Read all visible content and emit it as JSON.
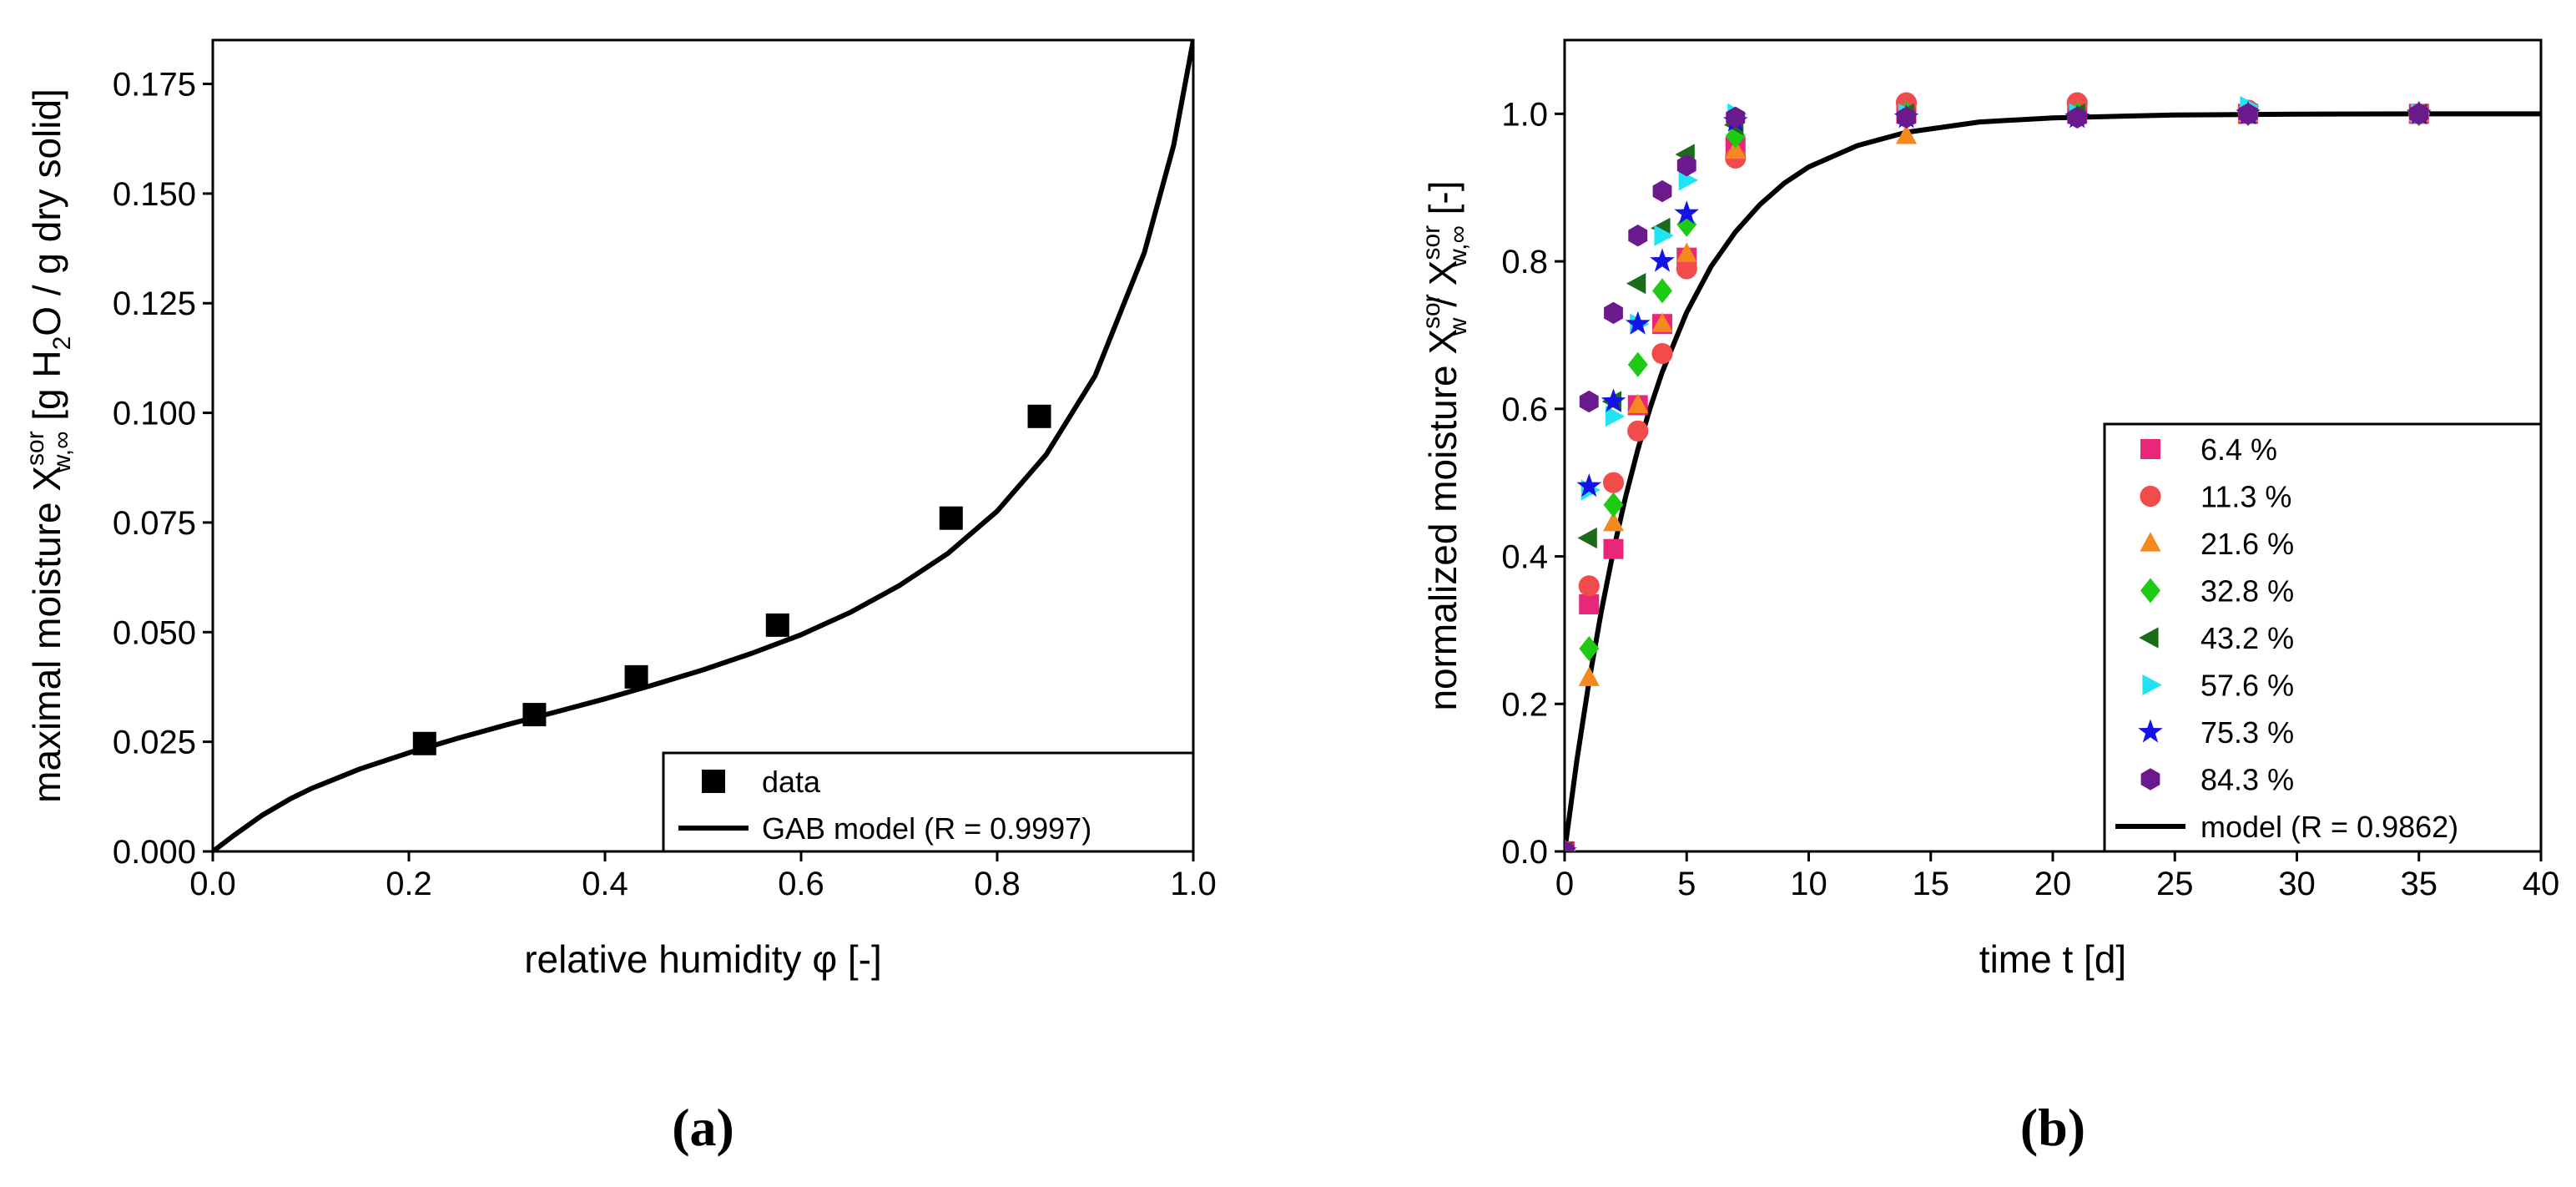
{
  "chart_data": [
    {
      "type": "scatter",
      "panel_label": "(a)",
      "xlabel": "relative humidity φ [-]",
      "ylabel": {
        "pre": "maximal moisture X",
        "sup": "sor",
        "sub": "w,∞",
        "mid": " [g H",
        "sub2": "2",
        "post": "O / g dry solid]"
      },
      "xlim": [
        0.0,
        1.0
      ],
      "ylim": [
        0.0,
        0.185
      ],
      "xticks": [
        "0.0",
        "0.2",
        "0.4",
        "0.6",
        "0.8",
        "1.0"
      ],
      "yticks": [
        "0.000",
        "0.025",
        "0.050",
        "0.075",
        "0.100",
        "0.125",
        "0.150",
        "0.175"
      ],
      "series": [
        {
          "name": "data",
          "kind": "scatter",
          "marker": "square",
          "color": "#000000",
          "x": [
            0.216,
            0.328,
            0.432,
            0.576,
            0.753,
            0.843
          ],
          "y": [
            0.0246,
            0.0312,
            0.0398,
            0.0516,
            0.076,
            0.0992
          ]
        },
        {
          "name": "GAB model (R = 0.9997)",
          "kind": "line",
          "color": "#000000",
          "x": [
            0.0,
            0.02,
            0.05,
            0.08,
            0.1,
            0.15,
            0.2,
            0.25,
            0.3,
            0.35,
            0.4,
            0.45,
            0.5,
            0.55,
            0.6,
            0.65,
            0.7,
            0.75,
            0.8,
            0.85,
            0.9,
            0.95,
            0.98,
            1.0
          ],
          "y": [
            0.0,
            0.0034,
            0.0082,
            0.0121,
            0.0143,
            0.0188,
            0.0225,
            0.0258,
            0.0289,
            0.0318,
            0.0348,
            0.038,
            0.0414,
            0.0452,
            0.0494,
            0.0545,
            0.0606,
            0.068,
            0.0776,
            0.0905,
            0.1085,
            0.1365,
            0.161,
            0.185
          ]
        }
      ],
      "legend": {
        "position": "bottom-right",
        "entries": [
          "data",
          "GAB model (R = 0.9997)"
        ]
      }
    },
    {
      "type": "scatter",
      "panel_label": "(b)",
      "xlabel": "time t [d]",
      "ylabel": {
        "pre": "normalized moisture X",
        "sup": "sor",
        "sub": "w",
        "mid": " / X",
        "sup2": "sor",
        "sub2": "w,∞",
        "post": " [-]"
      },
      "xlim": [
        0,
        40
      ],
      "ylim": [
        0.0,
        1.1
      ],
      "xticks": [
        "0",
        "5",
        "10",
        "15",
        "20",
        "25",
        "30",
        "35",
        "40"
      ],
      "yticks": [
        "0.0",
        "0.2",
        "0.4",
        "0.6",
        "0.8",
        "1.0"
      ],
      "series": [
        {
          "name": "6.4 %",
          "marker": "square",
          "color": "#e8267a",
          "x": [
            0,
            1,
            2,
            3,
            4,
            5,
            7,
            14,
            21,
            28,
            35
          ],
          "y": [
            0.0,
            0.335,
            0.41,
            0.605,
            0.715,
            0.805,
            0.955,
            1.0,
            1.0,
            1.0,
            1.0
          ]
        },
        {
          "name": "11.3 %",
          "marker": "circle",
          "color": "#f24b4b",
          "x": [
            0,
            1,
            2,
            3,
            4,
            5,
            7,
            14,
            21,
            28,
            35
          ],
          "y": [
            0.0,
            0.36,
            0.5,
            0.57,
            0.675,
            0.79,
            0.94,
            1.015,
            1.015,
            1.005,
            1.0
          ]
        },
        {
          "name": "21.6 %",
          "marker": "triangle-up",
          "color": "#f5891f",
          "x": [
            0,
            1,
            2,
            3,
            4,
            5,
            7,
            14,
            21,
            28,
            35
          ],
          "y": [
            0.0,
            0.235,
            0.445,
            0.605,
            0.715,
            0.81,
            0.95,
            0.97,
            1.0,
            1.0,
            1.0
          ]
        },
        {
          "name": "32.8 %",
          "marker": "diamond",
          "color": "#1ecb14",
          "x": [
            0,
            1,
            2,
            3,
            4,
            5,
            7,
            14,
            21,
            28,
            35
          ],
          "y": [
            0.0,
            0.275,
            0.47,
            0.66,
            0.76,
            0.85,
            0.97,
            1.0,
            1.0,
            1.0,
            1.0
          ]
        },
        {
          "name": "43.2 %",
          "marker": "triangle-left",
          "color": "#1a6b1a",
          "x": [
            0,
            1,
            2,
            3,
            4,
            5,
            7,
            14,
            21,
            28,
            35
          ],
          "y": [
            0.0,
            0.425,
            0.61,
            0.77,
            0.845,
            0.945,
            0.985,
            1.0,
            1.0,
            1.0,
            1.0
          ]
        },
        {
          "name": "57.6 %",
          "marker": "triangle-right",
          "color": "#22e4f0",
          "x": [
            0,
            1,
            2,
            3,
            4,
            5,
            7,
            14,
            21,
            28,
            35
          ],
          "y": [
            0.0,
            0.49,
            0.59,
            0.715,
            0.835,
            0.91,
            1.0,
            1.0,
            1.0,
            1.01,
            1.0
          ]
        },
        {
          "name": "75.3 %",
          "marker": "star",
          "color": "#1313e6",
          "x": [
            0,
            1,
            2,
            3,
            4,
            5,
            7,
            14,
            21,
            28,
            35
          ],
          "y": [
            0.0,
            0.495,
            0.61,
            0.715,
            0.8,
            0.865,
            0.99,
            0.995,
            0.995,
            1.0,
            1.0
          ]
        },
        {
          "name": "84.3 %",
          "marker": "hexagon",
          "color": "#6a1a8c",
          "x": [
            0,
            1,
            2,
            3,
            4,
            5,
            7,
            14,
            21,
            28,
            35
          ],
          "y": [
            0.0,
            0.61,
            0.73,
            0.835,
            0.895,
            0.93,
            0.995,
            0.995,
            0.995,
            1.0,
            1.0
          ]
        },
        {
          "name": "model (R = 0.9862)",
          "kind": "line",
          "color": "#000000",
          "x": [
            0,
            0.5,
            1,
            1.5,
            2,
            2.5,
            3,
            3.5,
            4,
            5,
            6,
            7,
            8,
            9,
            10,
            12,
            14,
            17,
            20,
            25,
            30,
            35,
            40
          ],
          "y": [
            0.0,
            0.123,
            0.231,
            0.325,
            0.408,
            0.481,
            0.545,
            0.601,
            0.65,
            0.731,
            0.793,
            0.84,
            0.877,
            0.906,
            0.928,
            0.957,
            0.975,
            0.989,
            0.9945,
            0.9985,
            0.9995,
            1.0,
            1.0
          ]
        }
      ],
      "legend": {
        "position": "bottom-right",
        "entries": [
          "6.4 %",
          "11.3 %",
          "21.6 %",
          "32.8 %",
          "43.2 %",
          "57.6 %",
          "75.3 %",
          "84.3 %",
          "model (R = 0.9862)"
        ]
      }
    }
  ]
}
